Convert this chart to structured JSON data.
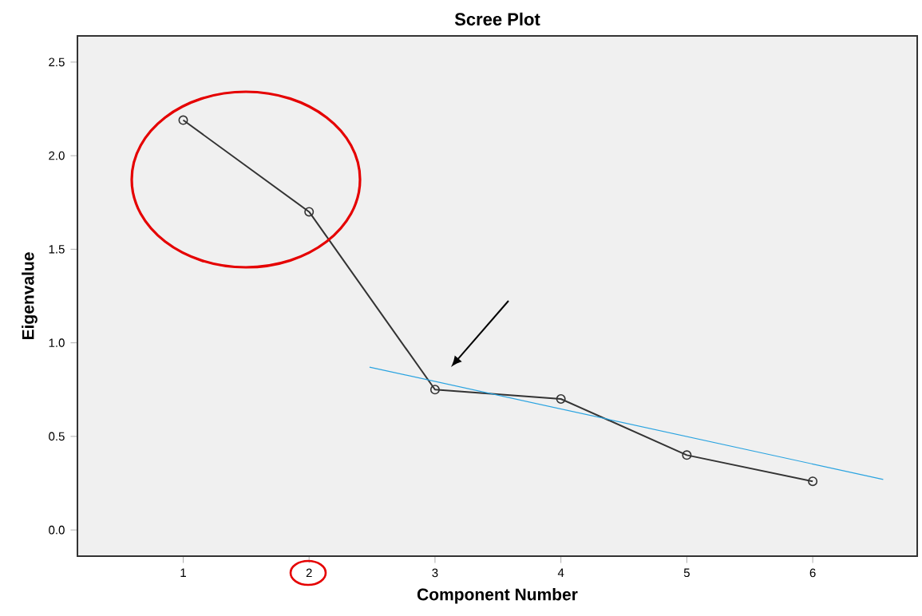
{
  "chart_data": {
    "type": "line",
    "title": "Scree Plot",
    "xlabel": "Component Number",
    "ylabel": "Eigenvalue",
    "x": [
      1,
      2,
      3,
      4,
      5,
      6
    ],
    "series": [
      {
        "color": "#333333",
        "marker": "circle",
        "values": [
          2.19,
          1.7,
          0.75,
          0.7,
          0.4,
          0.26
        ]
      },
      {
        "type": "line",
        "color": "#29a3e0",
        "marker": "none",
        "x": [
          2.48,
          6.56
        ],
        "values": [
          0.87,
          0.27
        ]
      }
    ],
    "xlim": [
      0.16,
      6.83
    ],
    "ylim": [
      -0.14,
      2.64
    ],
    "xticks": [
      1,
      2,
      3,
      4,
      5,
      6
    ],
    "yticks": [
      {
        "value": 0,
        "label": "0.0"
      },
      {
        "value": 0.5,
        "label": "0.5"
      },
      {
        "value": 1,
        "label": "1.0"
      },
      {
        "value": 1.5,
        "label": "1.5"
      },
      {
        "value": 2,
        "label": "2.0"
      },
      {
        "value": 2.5,
        "label": "2.5"
      }
    ],
    "line_style": "solid"
  }
}
